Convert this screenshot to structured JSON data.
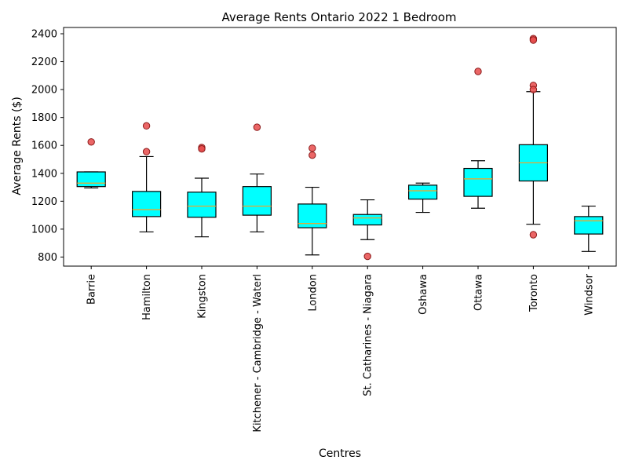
{
  "chart_data": {
    "type": "box",
    "title": "Average Rents Ontario  2022 1 Bedroom",
    "xlabel": "Centres",
    "ylabel": "Average Rents ($)",
    "ylim": [
      735,
      2445
    ],
    "yticks": [
      800,
      1000,
      1200,
      1400,
      1600,
      1800,
      2000,
      2200,
      2400
    ],
    "grid": false,
    "colors": {
      "box_fill": "#00ffff",
      "median": "#ff9f1c",
      "outlier": "#e84b4b"
    },
    "categories": [
      "Barrie",
      "Hamilton",
      "Kingston",
      "Kitchener - Cambridge - Waterl",
      "London",
      "St. Catharines - Niagara",
      "Oshawa",
      "Ottawa",
      "Toronto",
      "Windsor"
    ],
    "boxes": [
      {
        "whislo": 1295,
        "q1": 1305,
        "med": 1330,
        "q3": 1410,
        "whishi": 1410,
        "fliers": [
          1625
        ]
      },
      {
        "whislo": 980,
        "q1": 1090,
        "med": 1140,
        "q3": 1270,
        "whishi": 1520,
        "fliers": [
          1740,
          1555
        ]
      },
      {
        "whislo": 945,
        "q1": 1085,
        "med": 1165,
        "q3": 1265,
        "whishi": 1365,
        "fliers": [
          1585,
          1575
        ]
      },
      {
        "whislo": 980,
        "q1": 1100,
        "med": 1165,
        "q3": 1305,
        "whishi": 1395,
        "fliers": [
          1730
        ]
      },
      {
        "whislo": 815,
        "q1": 1010,
        "med": 1040,
        "q3": 1180,
        "whishi": 1300,
        "fliers": [
          1580,
          1530
        ]
      },
      {
        "whislo": 925,
        "q1": 1030,
        "med": 1080,
        "q3": 1105,
        "whishi": 1210,
        "fliers": [
          805
        ]
      },
      {
        "whislo": 1120,
        "q1": 1215,
        "med": 1275,
        "q3": 1315,
        "whishi": 1330,
        "fliers": []
      },
      {
        "whislo": 1150,
        "q1": 1235,
        "med": 1360,
        "q3": 1435,
        "whishi": 1490,
        "fliers": [
          2130
        ]
      },
      {
        "whislo": 1035,
        "q1": 1345,
        "med": 1475,
        "q3": 1605,
        "whishi": 1985,
        "fliers": [
          2365,
          2355,
          2030,
          2000,
          960
        ]
      },
      {
        "whislo": 840,
        "q1": 965,
        "med": 1060,
        "q3": 1090,
        "whishi": 1165,
        "fliers": []
      }
    ]
  }
}
